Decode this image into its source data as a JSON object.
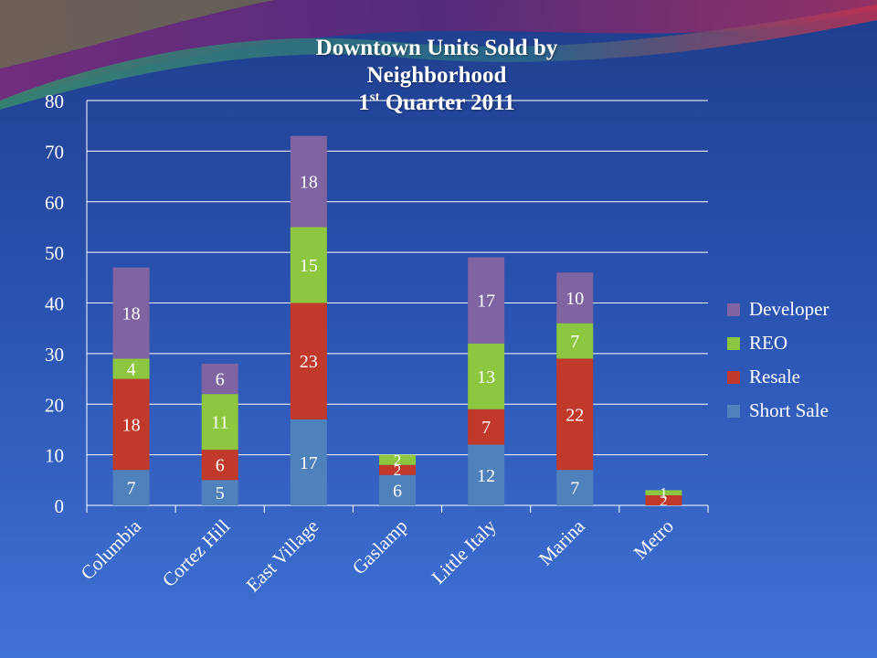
{
  "title": {
    "line1": "Downtown Units Sold by",
    "line2": "Neighborhood",
    "line3_num": "1",
    "line3_sup": "st",
    "line3_rest": " Quarter 2011"
  },
  "colors": {
    "Short Sale": "#4f81bd",
    "Resale": "#c0392b",
    "REO": "#8dc63f",
    "Developer": "#8064a2",
    "grid": "#ffffff",
    "text": "#ffffff"
  },
  "chart_data": {
    "type": "bar",
    "stacked": true,
    "categories": [
      "Columbia",
      "Cortez Hill",
      "East Village",
      "Gaslamp",
      "Little Italy",
      "Marina",
      "Metro"
    ],
    "series": [
      {
        "name": "Short Sale",
        "values": [
          7,
          5,
          17,
          6,
          12,
          7,
          0
        ]
      },
      {
        "name": "Resale",
        "values": [
          18,
          6,
          23,
          2,
          7,
          22,
          2
        ]
      },
      {
        "name": "REO",
        "values": [
          4,
          11,
          15,
          2,
          13,
          7,
          1
        ]
      },
      {
        "name": "Developer",
        "values": [
          18,
          6,
          18,
          0,
          17,
          10,
          0
        ]
      }
    ],
    "data_labels": [
      {
        "series": "Short Sale",
        "labels": [
          "7",
          "5",
          "17",
          "6",
          "12",
          "7",
          ""
        ]
      },
      {
        "series": "Resale",
        "labels": [
          "18",
          "6",
          "23",
          "2",
          "7",
          "22",
          "2"
        ]
      },
      {
        "series": "REO",
        "labels": [
          "4",
          "11",
          "15",
          "2",
          "13",
          "7",
          "1"
        ]
      },
      {
        "series": "Developer",
        "labels": [
          "18",
          "6",
          "18",
          "",
          "17",
          "10",
          ""
        ]
      }
    ],
    "yticks": [
      "0",
      "10",
      "20",
      "30",
      "40",
      "50",
      "60",
      "70",
      "80"
    ],
    "ylim": [
      0,
      80
    ],
    "grid": true,
    "legend": {
      "position": "right",
      "entries": [
        "Developer",
        "REO",
        "Resale",
        "Short Sale"
      ]
    }
  }
}
